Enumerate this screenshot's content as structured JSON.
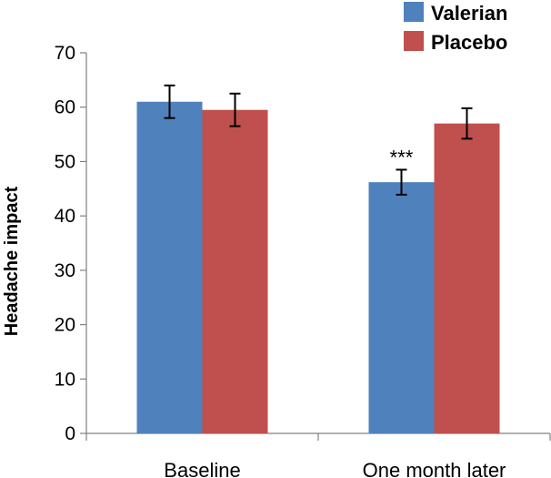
{
  "chart_data": {
    "type": "bar",
    "title": "",
    "xlabel": "",
    "ylabel": "Headache impact",
    "ylim": [
      0,
      70
    ],
    "yticks": [
      0,
      10,
      20,
      30,
      40,
      50,
      60,
      70
    ],
    "grid": false,
    "legend_position": "top-right",
    "categories": [
      "Baseline",
      "One month later"
    ],
    "series": [
      {
        "name": "Valerian",
        "color": "#4f81bd",
        "values": [
          61,
          46.2
        ],
        "errors": [
          3,
          2.3
        ]
      },
      {
        "name": "Placebo",
        "color": "#c0504d",
        "values": [
          59.5,
          57
        ],
        "errors": [
          3,
          2.8
        ]
      }
    ],
    "annotations": [
      {
        "text": "***",
        "category": "One month later",
        "series": "Valerian"
      }
    ]
  }
}
